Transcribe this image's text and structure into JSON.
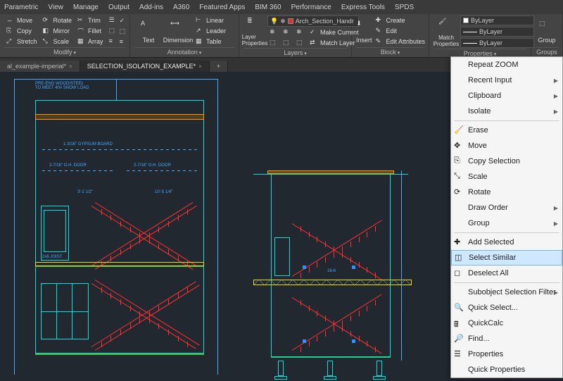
{
  "menus": [
    "Parametric",
    "View",
    "Manage",
    "Output",
    "Add-ins",
    "A360",
    "Featured Apps",
    "BIM 360",
    "Performance",
    "Express Tools",
    "SPDS"
  ],
  "modify": {
    "title": "Modify",
    "items": [
      [
        "Move",
        "Rotate",
        "Trim",
        "✓"
      ],
      [
        "Copy",
        "Mirror",
        "Fillet",
        "⬚"
      ],
      [
        "Stretch",
        "Scale",
        "Array",
        "≡"
      ]
    ]
  },
  "annotation": {
    "title": "Annotation",
    "text": "Text",
    "dim": "Dimension",
    "linear": "Linear",
    "leader": "Leader",
    "table": "Table"
  },
  "layers": {
    "title": "Layers",
    "current": "Arch_Section_Handr",
    "b1": "Make Current",
    "b2": "Match Layer"
  },
  "block": {
    "title": "Block",
    "insert": "Insert",
    "create": "Create",
    "edit": "Edit",
    "editattr": "Edit Attributes"
  },
  "props": {
    "title": "Properties",
    "match": "Match Properties",
    "by": "ByLayer"
  },
  "groups": {
    "title": "Groups",
    "group": "Group"
  },
  "tabs": [
    {
      "name": "al_example-imperial*",
      "active": false
    },
    {
      "name": "SELECTION_ISOLATION_EXAMPLE*",
      "active": true
    }
  ],
  "ctx": {
    "sections": [
      [
        {
          "t": "Repeat ZOOM"
        },
        {
          "t": "Recent Input",
          "sub": true
        },
        {
          "t": "Clipboard",
          "sub": true
        },
        {
          "t": "Isolate",
          "sub": true
        }
      ],
      [
        {
          "t": "Erase",
          "i": "erase"
        },
        {
          "t": "Move",
          "i": "move"
        },
        {
          "t": "Copy Selection",
          "i": "copy"
        },
        {
          "t": "Scale",
          "i": "scale"
        },
        {
          "t": "Rotate",
          "i": "rotate"
        },
        {
          "t": "Draw Order",
          "sub": true
        },
        {
          "t": "Group",
          "sub": true
        }
      ],
      [
        {
          "t": "Add Selected",
          "i": "add"
        },
        {
          "t": "Select Similar",
          "i": "sim",
          "hl": true
        },
        {
          "t": "Deselect All",
          "i": "desel"
        }
      ],
      [
        {
          "t": "Subobject Selection Filter",
          "sub": true
        },
        {
          "t": "Quick Select...",
          "i": "qsel"
        },
        {
          "t": "QuickCalc",
          "i": "calc"
        },
        {
          "t": "Find...",
          "i": "find"
        },
        {
          "t": "Properties",
          "i": "prop"
        },
        {
          "t": "Quick Properties"
        }
      ]
    ]
  },
  "colors": {
    "cyan": "#00e0e0",
    "blue": "#4aa8ff",
    "red": "#ff3030",
    "yellow": "#e0e020",
    "green": "#40c040",
    "orange": "#ff9500"
  }
}
